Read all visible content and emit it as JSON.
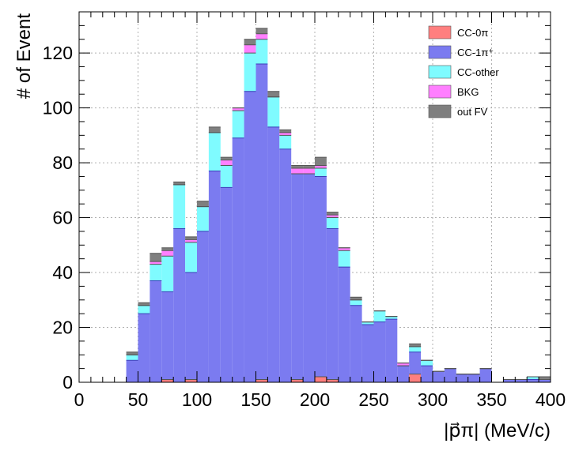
{
  "chart_data": {
    "type": "bar",
    "stacked": true,
    "xlabel": "|p⃗π| (MeV/c)",
    "ylabel": "# of Event",
    "xlim": [
      0,
      400
    ],
    "ylim": [
      0,
      135
    ],
    "bin_width": 10,
    "x": [
      40,
      50,
      60,
      70,
      80,
      90,
      100,
      110,
      120,
      130,
      140,
      150,
      160,
      170,
      180,
      190,
      200,
      210,
      220,
      230,
      240,
      250,
      260,
      270,
      280,
      290,
      300,
      310,
      320,
      330,
      340,
      350,
      360,
      370,
      380,
      390
    ],
    "xticks": [
      0,
      50,
      100,
      150,
      200,
      250,
      300,
      350,
      400
    ],
    "yticks": [
      0,
      20,
      40,
      60,
      80,
      100,
      120
    ],
    "grid": true,
    "legend_position": "top-right",
    "series": [
      {
        "name": "CC-0π",
        "color": "#ff7f7f",
        "values": [
          0,
          0,
          0,
          1,
          0,
          1,
          0,
          0,
          0,
          0,
          0,
          1,
          0,
          0,
          1,
          0,
          2,
          1,
          0,
          0,
          0,
          0,
          0,
          0,
          3,
          0,
          0,
          0,
          0,
          0,
          0,
          0,
          0,
          0,
          0,
          0
        ]
      },
      {
        "name": "CC-1π⁺",
        "color": "#7b7bf0",
        "values": [
          8,
          25,
          37,
          32,
          56,
          39,
          55,
          77,
          71,
          89,
          106,
          115,
          93,
          85,
          75,
          76,
          73,
          55,
          42,
          28,
          21,
          22,
          23,
          6,
          8,
          6,
          4,
          5,
          3,
          3,
          5,
          0,
          1,
          1,
          1,
          1
        ]
      },
      {
        "name": "CC-other",
        "color": "#7ffbff",
        "values": [
          2,
          3,
          6,
          13,
          16,
          11,
          9,
          14,
          8,
          10,
          14,
          9,
          11,
          5,
          0,
          0,
          3,
          4,
          6,
          2,
          1,
          4,
          1,
          0,
          2,
          2,
          0,
          0,
          0,
          0,
          0,
          0,
          0,
          0,
          1,
          0
        ]
      },
      {
        "name": "BKG",
        "color": "#ff7fff",
        "values": [
          0,
          0,
          1,
          2,
          0,
          1,
          0,
          0,
          2,
          1,
          3,
          2,
          0,
          1,
          2,
          2,
          1,
          1,
          1,
          0,
          0,
          0,
          0,
          1,
          0,
          0,
          0,
          0,
          0,
          0,
          0,
          0,
          0,
          0,
          0,
          0
        ]
      },
      {
        "name": "out FV",
        "color": "#7f7f7f",
        "values": [
          1,
          1,
          3,
          1,
          1,
          1,
          2,
          2,
          1,
          0,
          2,
          2,
          2,
          1,
          1,
          1,
          3,
          1,
          0,
          1,
          0,
          0,
          0,
          0,
          1,
          0,
          0,
          0,
          0,
          0,
          0,
          0,
          0,
          0,
          0,
          1
        ]
      }
    ]
  }
}
